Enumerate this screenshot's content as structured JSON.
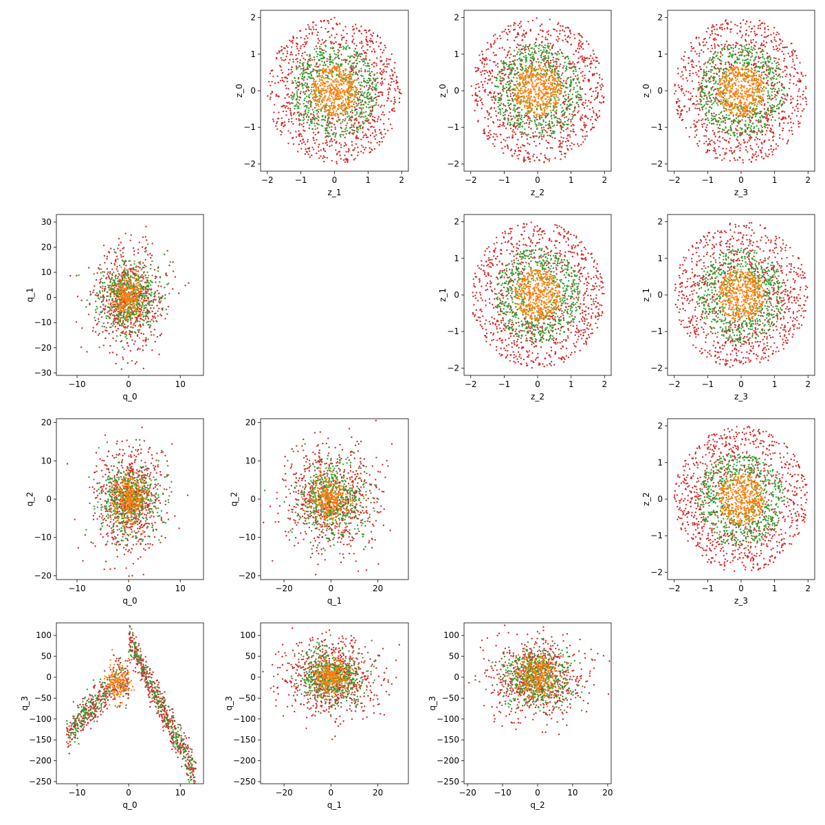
{
  "colors": {
    "inner": "#ff7f0e",
    "middle": "#2ca02c",
    "outer": "#d62728"
  },
  "chart_data": [
    {
      "type": "scatter",
      "pattern": "disk",
      "xlabel": "z_1",
      "ylabel": "z_0",
      "xlim": [
        -2.2,
        2.2
      ],
      "ylim": [
        -2.2,
        2.2
      ],
      "xticks": [
        -2,
        -1,
        0,
        1,
        2
      ],
      "yticks": [
        -2,
        -1,
        0,
        1,
        2
      ],
      "series_radii": [
        0.7,
        1.3,
        2.0
      ]
    },
    {
      "type": "scatter",
      "pattern": "disk",
      "xlabel": "z_2",
      "ylabel": "z_0",
      "xlim": [
        -2.2,
        2.2
      ],
      "ylim": [
        -2.2,
        2.2
      ],
      "xticks": [
        -2,
        -1,
        0,
        1,
        2
      ],
      "yticks": [
        -2,
        -1,
        0,
        1,
        2
      ],
      "series_radii": [
        0.7,
        1.3,
        2.0
      ]
    },
    {
      "type": "scatter",
      "pattern": "disk",
      "xlabel": "z_3",
      "ylabel": "z_0",
      "xlim": [
        -2.2,
        2.2
      ],
      "ylim": [
        -2.2,
        2.2
      ],
      "xticks": [
        -2,
        -1,
        0,
        1,
        2
      ],
      "yticks": [
        -2,
        -1,
        0,
        1,
        2
      ],
      "series_radii": [
        0.7,
        1.3,
        2.0
      ]
    },
    {
      "type": "scatter",
      "pattern": "cloud",
      "xlabel": "q_0",
      "ylabel": "q_1",
      "xlim": [
        -14,
        14.5
      ],
      "ylim": [
        -31,
        33
      ],
      "xticks": [
        -10,
        0,
        10
      ],
      "yticks": [
        -30,
        -20,
        -10,
        0,
        10,
        20,
        30
      ],
      "series_spread": [
        [
          1.5,
          5
        ],
        [
          3,
          7
        ],
        [
          3.5,
          10
        ]
      ]
    },
    {
      "type": "scatter",
      "pattern": "disk",
      "xlabel": "z_2",
      "ylabel": "z_1",
      "xlim": [
        -2.2,
        2.2
      ],
      "ylim": [
        -2.2,
        2.2
      ],
      "xticks": [
        -2,
        -1,
        0,
        1,
        2
      ],
      "yticks": [
        -2,
        -1,
        0,
        1,
        2
      ],
      "series_radii": [
        0.7,
        1.3,
        2.0
      ]
    },
    {
      "type": "scatter",
      "pattern": "disk",
      "xlabel": "z_3",
      "ylabel": "z_1",
      "xlim": [
        -2.2,
        2.2
      ],
      "ylim": [
        -2.2,
        2.2
      ],
      "xticks": [
        -2,
        -1,
        0,
        1,
        2
      ],
      "yticks": [
        -2,
        -1,
        0,
        1,
        2
      ],
      "series_radii": [
        0.7,
        1.3,
        2.0
      ]
    },
    {
      "type": "scatter",
      "pattern": "cloud",
      "xlabel": "q_0",
      "ylabel": "q_2",
      "xlim": [
        -14,
        14.5
      ],
      "ylim": [
        -21,
        21
      ],
      "xticks": [
        -10,
        0,
        10
      ],
      "yticks": [
        -20,
        -10,
        0,
        10,
        20
      ],
      "series_spread": [
        [
          1.5,
          3
        ],
        [
          3,
          5
        ],
        [
          3.5,
          7
        ]
      ]
    },
    {
      "type": "scatter",
      "pattern": "cloud",
      "xlabel": "q_1",
      "ylabel": "q_2",
      "xlim": [
        -30,
        33
      ],
      "ylim": [
        -21,
        21
      ],
      "xticks": [
        -20,
        0,
        20
      ],
      "yticks": [
        -20,
        -10,
        0,
        10,
        20
      ],
      "series_spread": [
        [
          4,
          3
        ],
        [
          7,
          5
        ],
        [
          10,
          7
        ]
      ]
    },
    {
      "type": "scatter",
      "pattern": "disk",
      "xlabel": "z_3",
      "ylabel": "z_2",
      "xlim": [
        -2.2,
        2.2
      ],
      "ylim": [
        -2.2,
        2.2
      ],
      "xticks": [
        -2,
        -1,
        0,
        1,
        2
      ],
      "yticks": [
        -2,
        -1,
        0,
        1,
        2
      ],
      "series_radii": [
        0.7,
        1.3,
        2.0
      ]
    },
    {
      "type": "scatter",
      "pattern": "chevron",
      "xlabel": "q_0",
      "ylabel": "q_3",
      "xlim": [
        -14,
        14.5
      ],
      "ylim": [
        -255,
        130
      ],
      "xticks": [
        -10,
        0,
        10
      ],
      "yticks": [
        -250,
        -200,
        -150,
        -100,
        -50,
        0,
        50,
        100
      ]
    },
    {
      "type": "scatter",
      "pattern": "cloud",
      "xlabel": "q_1",
      "ylabel": "q_3",
      "xlim": [
        -30,
        33
      ],
      "ylim": [
        -255,
        130
      ],
      "xticks": [
        -20,
        0,
        20
      ],
      "yticks": [
        -250,
        -200,
        -150,
        -100,
        -50,
        0,
        50,
        100
      ],
      "series_spread": [
        [
          4,
          20
        ],
        [
          7,
          30
        ],
        [
          10,
          45
        ]
      ]
    },
    {
      "type": "scatter",
      "pattern": "cloud",
      "xlabel": "q_2",
      "ylabel": "q_3",
      "xlim": [
        -21,
        21
      ],
      "ylim": [
        -255,
        130
      ],
      "xticks": [
        -20,
        -10,
        0,
        10,
        20
      ],
      "yticks": [
        -250,
        -200,
        -150,
        -100,
        -50,
        0,
        50,
        100
      ],
      "series_spread": [
        [
          3,
          25
        ],
        [
          5,
          35
        ],
        [
          7,
          50
        ]
      ]
    }
  ]
}
